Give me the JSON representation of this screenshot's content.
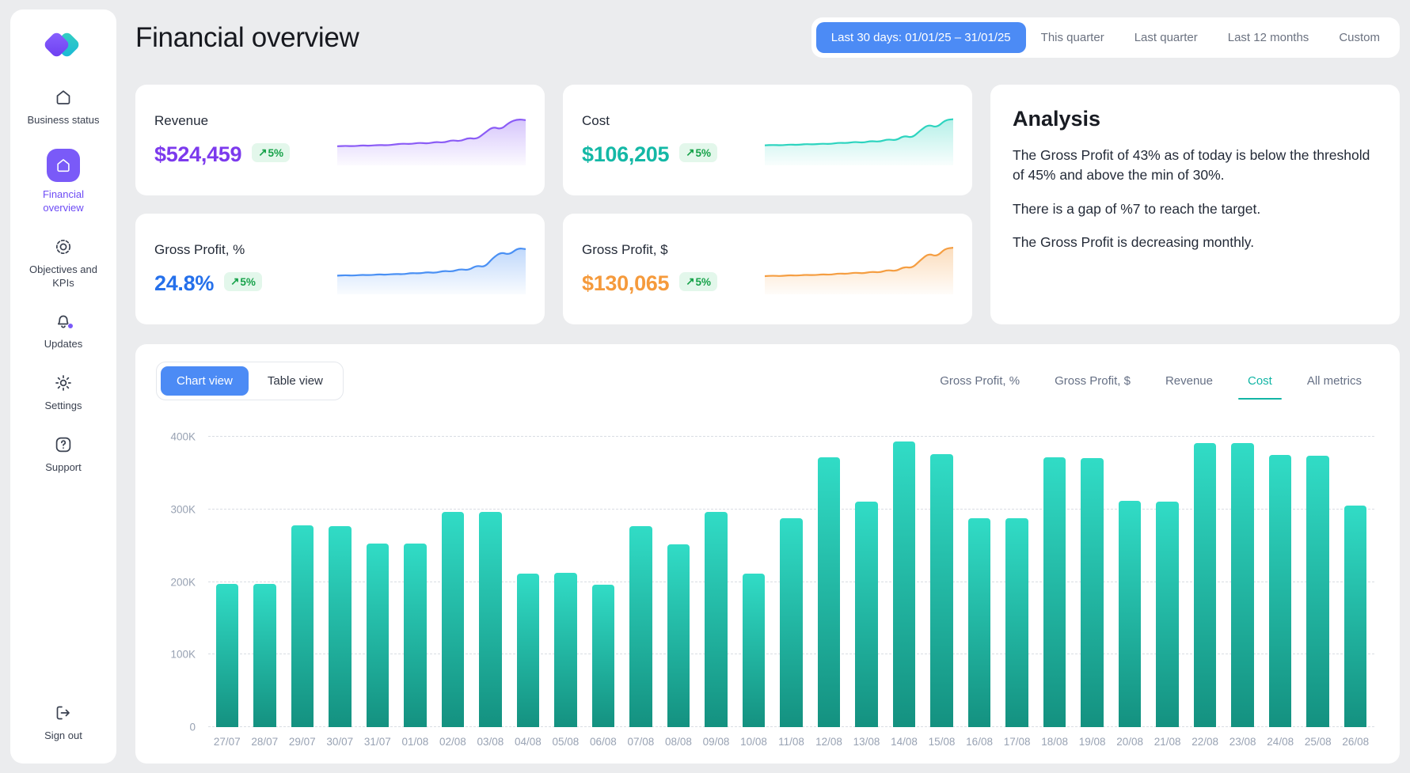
{
  "colors": {
    "accent_blue": "#4C8BF5",
    "accent_purple": "#7A5AF8",
    "tab_active_teal": "#12B5A5",
    "badge_bg": "#E3F7EB",
    "badge_text": "#17A24A",
    "bar_top": "#31DCC6",
    "bar_bottom": "#149180"
  },
  "sidebar": {
    "items": [
      {
        "label": "Business status",
        "icon": "home"
      },
      {
        "label": "Financial overview",
        "icon": "home",
        "active": true
      },
      {
        "label": "Objectives and KPIs",
        "icon": "target"
      },
      {
        "label": "Updates",
        "icon": "bell-with-dot"
      },
      {
        "label": "Settings",
        "icon": "gear"
      },
      {
        "label": "Support",
        "icon": "help"
      },
      {
        "label": "Sign out",
        "icon": "sign-out"
      }
    ]
  },
  "header": {
    "title": "Financial overview",
    "ranges": [
      {
        "label": "Last 30 days: 01/01/25 – 31/01/25",
        "active": true
      },
      {
        "label": "This quarter",
        "active": false
      },
      {
        "label": "Last quarter",
        "active": false
      },
      {
        "label": "Last 12 months",
        "active": false
      },
      {
        "label": "Custom",
        "active": false
      }
    ]
  },
  "kpis": [
    {
      "title": "Revenue",
      "value": "$524,459",
      "delta": "5%",
      "delta_arrow": "↗",
      "value_color": "#7C3AED",
      "line_color": "#8B5CF6",
      "sparkline": [
        0.36,
        0.37,
        0.36,
        0.38,
        0.37,
        0.39,
        0.38,
        0.4,
        0.42,
        0.41,
        0.44,
        0.42,
        0.46,
        0.44,
        0.5,
        0.47,
        0.55,
        0.52,
        0.66,
        0.8,
        0.74,
        0.9,
        0.97,
        0.95
      ]
    },
    {
      "title": "Cost",
      "value": "$106,205",
      "delta": "5%",
      "delta_arrow": "↗",
      "value_color": "#14B8A6",
      "line_color": "#2DD4BF",
      "sparkline": [
        0.38,
        0.39,
        0.38,
        0.4,
        0.39,
        0.41,
        0.4,
        0.42,
        0.41,
        0.44,
        0.43,
        0.46,
        0.44,
        0.48,
        0.46,
        0.52,
        0.49,
        0.6,
        0.55,
        0.72,
        0.85,
        0.78,
        0.95,
        0.97
      ]
    },
    {
      "title": "Gross Profit, %",
      "value": "24.8%",
      "delta": "5%",
      "delta_arrow": "↗",
      "value_color": "#2570EB",
      "line_color": "#4A90F4",
      "sparkline": [
        0.35,
        0.36,
        0.35,
        0.37,
        0.36,
        0.38,
        0.37,
        0.39,
        0.38,
        0.41,
        0.4,
        0.43,
        0.41,
        0.46,
        0.44,
        0.5,
        0.47,
        0.58,
        0.54,
        0.75,
        0.88,
        0.82,
        0.97,
        0.95
      ]
    },
    {
      "title": "Gross Profit, $",
      "value": "$130,065",
      "delta": "5%",
      "delta_arrow": "↗",
      "value_color": "#F59A3C",
      "line_color": "#F59E42",
      "sparkline": [
        0.34,
        0.35,
        0.34,
        0.36,
        0.35,
        0.37,
        0.36,
        0.38,
        0.37,
        0.4,
        0.39,
        0.42,
        0.4,
        0.44,
        0.42,
        0.48,
        0.45,
        0.55,
        0.52,
        0.7,
        0.85,
        0.78,
        0.96,
        0.98
      ]
    }
  ],
  "analysis": {
    "title": "Analysis",
    "paragraphs": [
      "The Gross Profit of 43% as of today is below the threshold of 45% and above the min of 30%.",
      "There is a gap of %7 to reach the target.",
      "The Gross Profit is decreasing monthly."
    ]
  },
  "chart_section": {
    "views": [
      {
        "label": "Chart view",
        "active": true
      },
      {
        "label": "Table view",
        "active": false
      }
    ],
    "tabs": [
      {
        "label": "Gross Profit, %",
        "active": false
      },
      {
        "label": "Gross Profit, $",
        "active": false
      },
      {
        "label": "Revenue",
        "active": false
      },
      {
        "label": "Cost",
        "active": true
      },
      {
        "label": "All metrics",
        "active": false
      }
    ]
  },
  "chart_data": {
    "type": "bar",
    "selected_metric": "Cost",
    "categories": [
      "27/07",
      "28/07",
      "29/07",
      "30/07",
      "31/07",
      "01/08",
      "02/08",
      "03/08",
      "04/08",
      "05/08",
      "06/08",
      "07/08",
      "08/08",
      "09/08",
      "10/08",
      "11/08",
      "12/08",
      "13/08",
      "14/08",
      "15/08",
      "16/08",
      "17/08",
      "18/08",
      "19/08",
      "20/08",
      "21/08",
      "22/08",
      "23/08",
      "24/08",
      "25/08",
      "26/08"
    ],
    "values": [
      197000,
      197000,
      278000,
      277000,
      253000,
      253000,
      296000,
      296000,
      212000,
      213000,
      196000,
      277000,
      252000,
      296000,
      211000,
      288000,
      372000,
      311000,
      394000,
      376000,
      288000,
      288000,
      372000,
      371000,
      312000,
      311000,
      391000,
      391000,
      375000,
      374000,
      305000
    ],
    "ylim": [
      0,
      400000
    ],
    "yticks": [
      {
        "label": "0",
        "value": 0
      },
      {
        "label": "100K",
        "value": 100000
      },
      {
        "label": "200K",
        "value": 200000
      },
      {
        "label": "300K",
        "value": 300000
      },
      {
        "label": "400K",
        "value": 400000
      }
    ],
    "grid": "dashed-horizontal",
    "legend": "none",
    "bar_color_top": "#31DCC6",
    "bar_color_bottom": "#149180"
  }
}
